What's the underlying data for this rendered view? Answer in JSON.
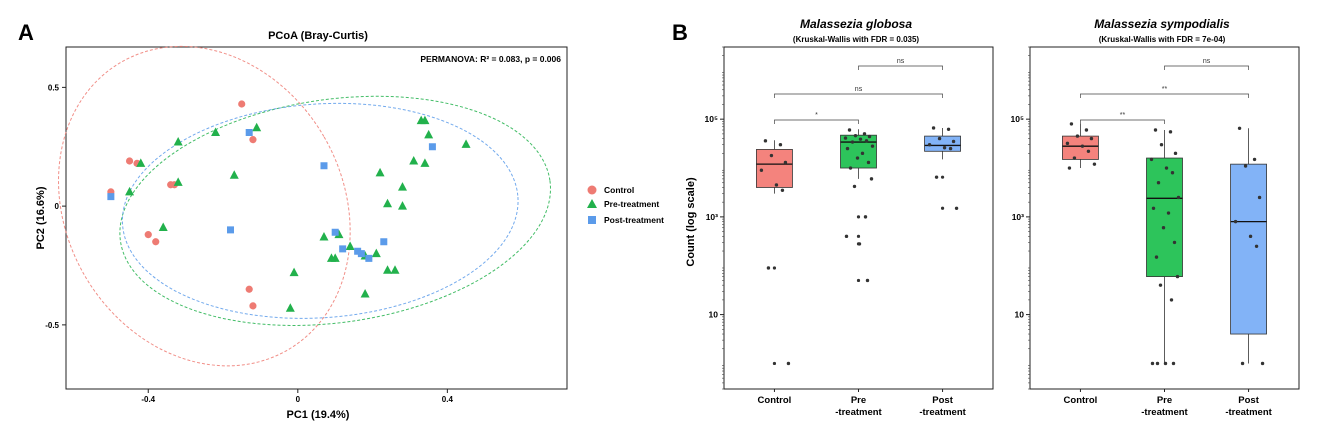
{
  "panels": {
    "a": {
      "letter": "A"
    },
    "b": {
      "letter": "B"
    }
  },
  "colors": {
    "control": "#ee7b73",
    "pre": "#22b14c",
    "post": "#5b9bea",
    "control_box": "#f4837d",
    "pre_box": "#2dc45b",
    "post_box": "#82b3f7",
    "jitter": "#333333"
  },
  "chart_data": [
    {
      "type": "scatter",
      "title": "PCoA (Bray-Curtis)",
      "annotation": "PERMANOVA: R² = 0.083, p = 0.006",
      "xlabel": "PC1 (19.4%)",
      "ylabel": "PC2 (16.6%)",
      "xlim": [
        -0.62,
        0.72
      ],
      "ylim": [
        -0.77,
        0.67
      ],
      "xticks": [
        -0.4,
        0,
        0.4
      ],
      "xtick_labels": [
        "-0.4",
        "0",
        "0.4"
      ],
      "yticks": [
        0.5,
        0,
        -0.5
      ],
      "ytick_labels": [
        "0.5",
        "0",
        "-0.5"
      ],
      "grid": false,
      "legend_position": "right",
      "series": [
        {
          "name": "Control",
          "shape": "circle",
          "color_key": "control",
          "x": [
            -0.5,
            -0.45,
            -0.43,
            -0.33,
            -0.34,
            -0.4,
            -0.38,
            -0.15,
            -0.12,
            -0.13,
            -0.12
          ],
          "y": [
            0.06,
            0.19,
            0.18,
            0.09,
            0.09,
            -0.12,
            -0.15,
            0.43,
            0.28,
            -0.35,
            -0.42
          ]
        },
        {
          "name": "Pre-treatment",
          "shape": "triangle",
          "color_key": "pre",
          "x": [
            -0.45,
            -0.42,
            -0.32,
            -0.36,
            -0.32,
            -0.22,
            -0.17,
            -0.11,
            -0.01,
            -0.02,
            0.07,
            0.09,
            0.11,
            0.1,
            0.14,
            0.18,
            0.18,
            0.22,
            0.24,
            0.26,
            0.21,
            0.24,
            0.28,
            0.34,
            0.31,
            0.33,
            0.35,
            0.34,
            0.28,
            0.45
          ],
          "y": [
            0.06,
            0.18,
            0.1,
            -0.09,
            0.27,
            0.31,
            0.13,
            0.33,
            -0.28,
            -0.43,
            -0.13,
            -0.22,
            -0.12,
            -0.22,
            -0.17,
            -0.21,
            -0.37,
            0.14,
            0.01,
            -0.27,
            -0.2,
            -0.27,
            0.0,
            0.18,
            0.19,
            0.36,
            0.3,
            0.36,
            0.08,
            0.26
          ]
        },
        {
          "name": "Post-treatment",
          "shape": "square",
          "color_key": "post",
          "x": [
            -0.5,
            -0.18,
            -0.13,
            0.07,
            0.1,
            0.12,
            0.16,
            0.17,
            0.19,
            0.23,
            0.36
          ],
          "y": [
            0.04,
            -0.1,
            0.31,
            0.17,
            -0.11,
            -0.18,
            -0.19,
            -0.2,
            -0.22,
            -0.15,
            0.25
          ]
        }
      ],
      "ellipses": [
        {
          "group": "Control",
          "color_key": "control",
          "cx": -0.25,
          "cy": 0.0,
          "rx": 0.37,
          "ry": 0.7,
          "angle": -30
        },
        {
          "group": "Pre-treatment",
          "color_key": "pre",
          "cx": 0.1,
          "cy": -0.02,
          "rx": 0.58,
          "ry": 0.47,
          "angle": -8
        },
        {
          "group": "Post-treatment",
          "color_key": "post",
          "cx": 0.06,
          "cy": -0.02,
          "rx": 0.53,
          "ry": 0.45,
          "angle": -4
        }
      ]
    },
    {
      "type": "box",
      "title": "Malassezia globosa",
      "subtitle": "(Kruskal-Wallis with FDR = 0.035)",
      "ylabel": "Count (log scale)",
      "yscale": "log10",
      "ylim": [
        0.3,
        3000000
      ],
      "yticks": [
        10,
        1000,
        100000
      ],
      "ytick_labels": [
        "10",
        "10³",
        "10⁵"
      ],
      "categories": [
        "Control",
        "Pre\n-treatment",
        "Post\n-treatment"
      ],
      "boxes": [
        {
          "q1": 4000,
          "median": 12000,
          "q3": 24000,
          "whisker_low": 3000,
          "whisker_high": 37000,
          "outliers": [
            90,
            1
          ],
          "color_key": "control_box"
        },
        {
          "q1": 10000,
          "median": 34000,
          "q3": 47000,
          "whisker_low": 6000,
          "whisker_high": 62000,
          "outliers": [
            1000,
            400,
            280,
            50
          ],
          "color_key": "pre_box"
        },
        {
          "q1": 22000,
          "median": 29000,
          "q3": 45000,
          "whisker_low": 15000,
          "whisker_high": 66000,
          "outliers": [
            1500,
            6500
          ],
          "color_key": "post_box"
        }
      ],
      "points": [
        [
          36000,
          30000,
          18000,
          13000,
          9000,
          4500,
          3500,
          90,
          1
        ],
        [
          60000,
          50000,
          46000,
          44000,
          41000,
          39000,
          36000,
          34000,
          28000,
          25000,
          20000,
          16000,
          13000,
          10000,
          6000,
          4200,
          1000,
          400,
          280,
          50
        ],
        [
          66000,
          62000,
          40000,
          35000,
          30000,
          26000,
          25000,
          6500,
          1500
        ]
      ],
      "comparisons": [
        {
          "from": 1,
          "to": 2,
          "label": "ns",
          "level": 2
        },
        {
          "from": 0,
          "to": 2,
          "label": "ns",
          "level": 1
        },
        {
          "from": 0,
          "to": 1,
          "label": "*",
          "level": 0
        }
      ]
    },
    {
      "type": "box",
      "title": "Malassezia sympodialis",
      "subtitle": "(Kruskal-Wallis with FDR = 7e-04)",
      "yscale": "log10",
      "ylim": [
        0.3,
        3000000
      ],
      "yticks": [
        10,
        1000,
        100000
      ],
      "ytick_labels": [
        "10",
        "10³",
        "10⁵"
      ],
      "categories": [
        "Control",
        "Pre\n-treatment",
        "Post\n-treatment"
      ],
      "boxes": [
        {
          "q1": 15000,
          "median": 28000,
          "q3": 45000,
          "whisker_low": 10000,
          "whisker_high": 80000,
          "outliers": [],
          "color_key": "control_box"
        },
        {
          "q1": 60,
          "median": 2400,
          "q3": 16000,
          "whisker_low": 1,
          "whisker_high": 60000,
          "outliers": [],
          "color_key": "pre_box"
        },
        {
          "q1": 4,
          "median": 800,
          "q3": 12000,
          "whisker_low": 1,
          "whisker_high": 65000,
          "outliers": [],
          "color_key": "post_box"
        }
      ],
      "points": [
        [
          80000,
          60000,
          45000,
          40000,
          32000,
          28000,
          22000,
          16000,
          12000,
          10000
        ],
        [
          60000,
          55000,
          30000,
          20000,
          15000,
          10000,
          8000,
          5000,
          2500,
          1500,
          1200,
          600,
          300,
          150,
          60,
          40,
          20,
          1,
          1,
          1,
          1
        ],
        [
          65000,
          15000,
          11000,
          2500,
          800,
          400,
          250,
          1,
          1
        ]
      ],
      "comparisons": [
        {
          "from": 1,
          "to": 2,
          "label": "ns",
          "level": 2
        },
        {
          "from": 0,
          "to": 2,
          "label": "**",
          "level": 1
        },
        {
          "from": 0,
          "to": 1,
          "label": "**",
          "level": 0
        }
      ]
    }
  ]
}
